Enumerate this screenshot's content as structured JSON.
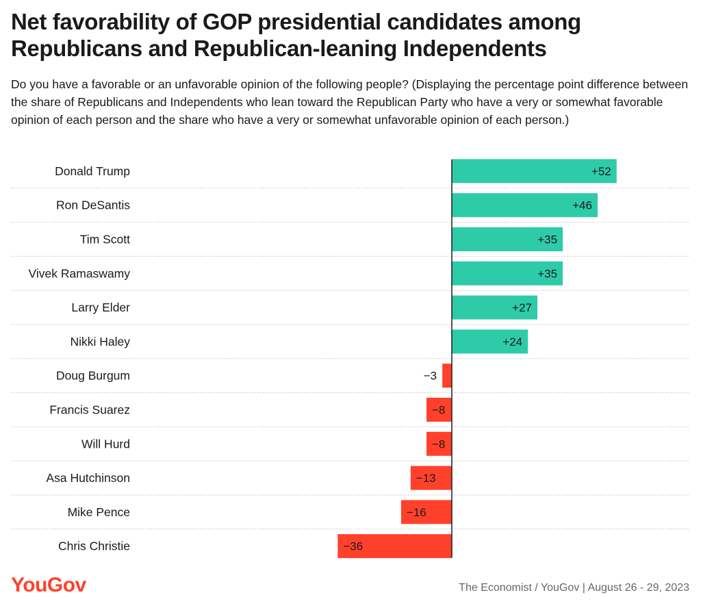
{
  "header": {
    "title": "Net favorability of GOP presidential candidates among Republicans and Republican-leaning Independents",
    "subtitle": "Do you have a favorable or an unfavorable opinion of the following people? (Displaying the percentage point difference between the share of Republicans and Independents who lean toward the Republican Party who have a very or somewhat favorable opinion of each person and the share who have a very or somewhat unfavorable opinion of each person.)"
  },
  "footer": {
    "brand": "YouGov",
    "source": "The Economist / YouGov | August 26 - 29, 2023"
  },
  "colors": {
    "positive": "#2ecba9",
    "negative": "#ff412c",
    "axis": "#1a1a1a",
    "gridline": "#cccccc"
  },
  "chart_data": {
    "type": "bar",
    "orientation": "horizontal",
    "categories": [
      "Donald Trump",
      "Ron DeSantis",
      "Tim Scott",
      "Vivek Ramaswamy",
      "Larry Elder",
      "Nikki Haley",
      "Doug Burgum",
      "Francis Suarez",
      "Will Hurd",
      "Asa Hutchinson",
      "Mike Pence",
      "Chris Christie"
    ],
    "values": [
      52,
      46,
      35,
      35,
      27,
      24,
      -3,
      -8,
      -8,
      -13,
      -16,
      -36
    ],
    "labels": [
      "+52",
      "+46",
      "+35",
      "+35",
      "+27",
      "+24",
      "−3",
      "−8",
      "−8",
      "−13",
      "−16",
      "−36"
    ],
    "xlim": [
      -36,
      52
    ],
    "grid": false,
    "legend": "none"
  }
}
